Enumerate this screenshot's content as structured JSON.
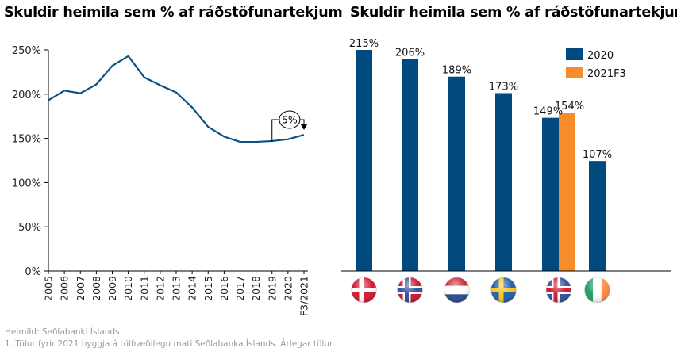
{
  "colors": {
    "series_2020": "#004a80",
    "series_2021F3": "#f78d2a",
    "line": "#0b5284",
    "axis": "#000000",
    "footnote": "#9a9a9a"
  },
  "chart_data": [
    {
      "type": "line",
      "title": "Skuldir heimila sem % af ráðstöfunartekjum",
      "xlabel": "",
      "ylabel": "",
      "ylim": [
        0,
        250
      ],
      "yticks": [
        "0%",
        "50%",
        "100%",
        "150%",
        "200%",
        "250%"
      ],
      "ytick_values": [
        0,
        50,
        100,
        150,
        200,
        250
      ],
      "categories": [
        "2005",
        "2006",
        "2007",
        "2008",
        "2009",
        "2010",
        "2011",
        "2012",
        "2013",
        "2014",
        "2015",
        "2016",
        "2017",
        "2018",
        "2019",
        "2020",
        "F3/2021"
      ],
      "series": [
        {
          "name": "Skuldir heimila",
          "values": [
            193,
            204,
            201,
            211,
            232,
            243,
            219,
            210,
            202,
            185,
            163,
            152,
            146,
            146,
            147,
            149,
            154
          ]
        }
      ],
      "annotation": {
        "text": "5%",
        "from": "2019",
        "to": "F3/2021"
      },
      "grid": false
    },
    {
      "type": "bar",
      "title": "Skuldir heimila sem % af ráðstöfunartekjum",
      "xlabel": "",
      "ylabel": "",
      "ylim": [
        0,
        215
      ],
      "categories": [
        "Danmörk",
        "Noregur",
        "Holland",
        "Svíþjóð",
        "Ísland",
        "Írland"
      ],
      "category_icons": [
        "flag-denmark",
        "flag-norway",
        "flag-netherlands",
        "flag-sweden",
        "flag-iceland",
        "flag-ireland"
      ],
      "series": [
        {
          "name": "2020",
          "values": [
            215,
            206,
            189,
            173,
            149,
            107
          ],
          "labels": [
            "215%",
            "206%",
            "189%",
            "173%",
            "149%",
            "107%"
          ]
        },
        {
          "name": "2021F3",
          "values": [
            null,
            null,
            null,
            null,
            154,
            null
          ],
          "labels": [
            null,
            null,
            null,
            null,
            "154%",
            null
          ]
        }
      ],
      "legend": {
        "position": "top-right",
        "entries": [
          "2020",
          "2021F3"
        ]
      },
      "grid": false
    }
  ],
  "footnotes": {
    "source": "Heimild: Seðlabanki Íslands.",
    "note": "1. Tölur fyrir 2021 byggja á tölfræðilegu mati Seðlabanka Íslands. Árlegar tölur."
  }
}
